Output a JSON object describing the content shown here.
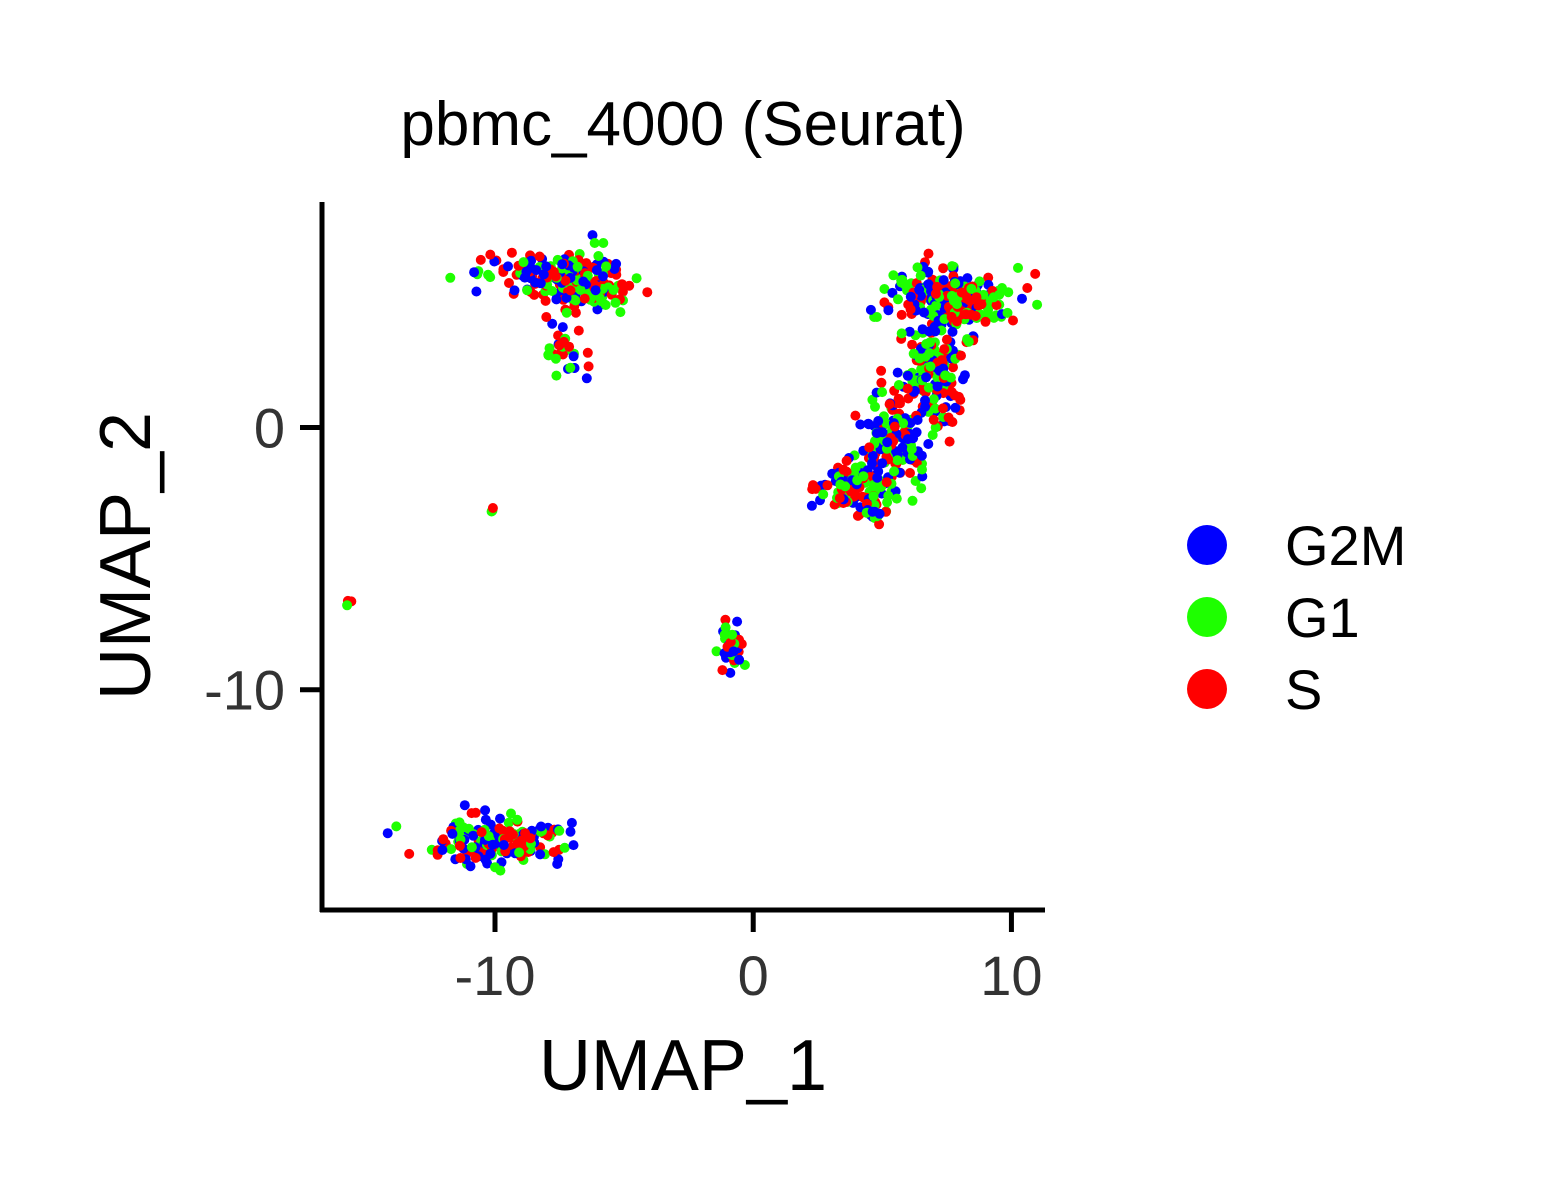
{
  "chart_data": {
    "type": "scatter",
    "title": "pbmc_4000 (Seurat)",
    "xlabel": "UMAP_1",
    "ylabel": "UMAP_2",
    "xlim": [
      -16.7,
      11.3
    ],
    "ylim": [
      -18.4,
      8.6
    ],
    "x_ticks": [
      {
        "value": -10,
        "label": "-10"
      },
      {
        "value": 0,
        "label": "0"
      },
      {
        "value": 10,
        "label": "10"
      }
    ],
    "y_ticks": [
      {
        "value": 0,
        "label": "0"
      },
      {
        "value": -10,
        "label": "-10"
      }
    ],
    "grid": false,
    "legend_position": "right",
    "series": [
      {
        "name": "G2M",
        "color": "#0000ff"
      },
      {
        "name": "G1",
        "color": "#1eff00"
      },
      {
        "name": "S",
        "color": "#ff0000"
      }
    ],
    "clusters": [
      {
        "cx": -6.6,
        "cy": 5.6,
        "sx": 0.9,
        "sy": 0.6,
        "n": 150
      },
      {
        "cx": -9.0,
        "cy": 6.0,
        "sx": 1.1,
        "sy": 0.35,
        "n": 55
      },
      {
        "cx": -7.3,
        "cy": 3.0,
        "sx": 0.35,
        "sy": 0.7,
        "n": 30
      },
      {
        "cx": -10.1,
        "cy": -3.2,
        "sx": 0.05,
        "sy": 0.05,
        "n": 3
      },
      {
        "cx": -15.7,
        "cy": -6.8,
        "sx": 0.08,
        "sy": 0.08,
        "n": 4
      },
      {
        "cx": -0.7,
        "cy": -8.2,
        "sx": 0.25,
        "sy": 0.5,
        "n": 35
      },
      {
        "cx": -9.8,
        "cy": -15.8,
        "sx": 1.4,
        "sy": 0.4,
        "n": 170
      },
      {
        "cx": 7.5,
        "cy": 4.9,
        "sx": 1.1,
        "sy": 0.6,
        "n": 240
      },
      {
        "cx": 6.9,
        "cy": 2.0,
        "sx": 0.7,
        "sy": 1.0,
        "n": 160
      },
      {
        "cx": 5.4,
        "cy": -0.6,
        "sx": 0.7,
        "sy": 0.9,
        "n": 140
      },
      {
        "cx": 3.9,
        "cy": -2.2,
        "sx": 0.7,
        "sy": 0.45,
        "n": 80
      },
      {
        "cx": 4.6,
        "cy": -3.2,
        "sx": 0.35,
        "sy": 0.25,
        "n": 30
      }
    ]
  }
}
